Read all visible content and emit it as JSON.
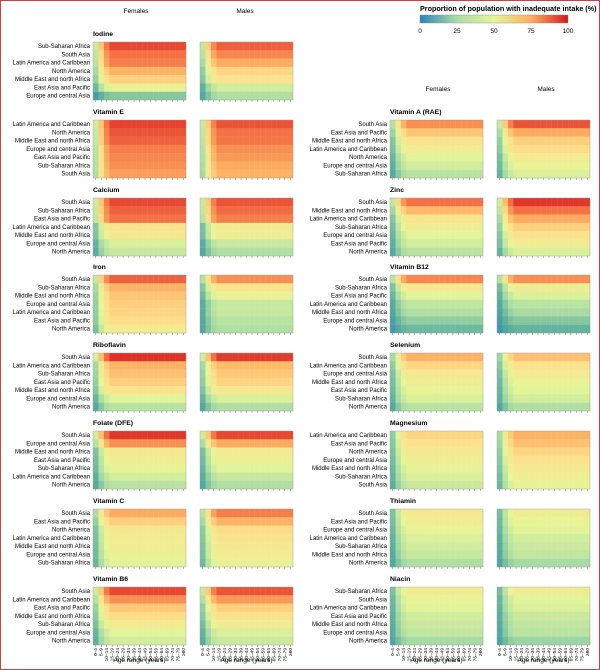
{
  "legend": {
    "title": "Proportion of population with inadequate intake (%)",
    "ticks": [
      "0",
      "25",
      "50",
      "75",
      "100"
    ]
  },
  "sex_labels": [
    "Females",
    "Males"
  ],
  "age_bins": [
    "0–4",
    "5–9",
    "10–14",
    "15–19",
    "20–24",
    "25–29",
    "30–34",
    "35–39",
    "40–44",
    "45–49",
    "50–54",
    "55–59",
    "60–64",
    "65–69",
    "70–74",
    "75–79",
    "≥80"
  ],
  "xlabel": "Age range (years)",
  "colors": {
    "scale": [
      "#2b83ba",
      "#5aae9c",
      "#abdda4",
      "#e6f598",
      "#fee08b",
      "#fdae61",
      "#f46d43",
      "#d7191c"
    ],
    "frame": "#d23f3f"
  },
  "chart_data": [
    {
      "type": "heatmap",
      "title": "Iodine",
      "column": "left",
      "regions": [
        "Sub-Saharan Africa",
        "South Asia",
        "Latin America and Caribbean",
        "North America",
        "Middle East and north Africa",
        "East Asia and Pacific",
        "Europe and central Asia"
      ],
      "series": [
        {
          "name": "Females",
          "base": [
            92,
            85,
            82,
            70,
            62,
            45,
            22
          ]
        },
        {
          "name": "Males",
          "base": [
            88,
            80,
            72,
            60,
            55,
            38,
            30
          ]
        }
      ]
    },
    {
      "type": "heatmap",
      "title": "Vitamin E",
      "column": "left",
      "regions": [
        "Latin America and Caribbean",
        "North America",
        "Middle East and north Africa",
        "Europe and central Asia",
        "East Asia and Pacific",
        "Sub-Saharan Africa",
        "South Asia"
      ],
      "series": [
        {
          "name": "Females",
          "base": [
            93,
            90,
            88,
            82,
            80,
            78,
            75
          ]
        },
        {
          "name": "Males",
          "base": [
            90,
            85,
            84,
            78,
            76,
            72,
            70
          ]
        }
      ]
    },
    {
      "type": "heatmap",
      "title": "Calcium",
      "column": "left",
      "regions": [
        "South Asia",
        "Sub-Saharan Africa",
        "East Asia and Pacific",
        "Latin America and Caribbean",
        "Middle East and north Africa",
        "Europe and central Asia",
        "North America"
      ],
      "series": [
        {
          "name": "Females",
          "base": [
            92,
            88,
            85,
            55,
            52,
            40,
            35
          ]
        },
        {
          "name": "Males",
          "base": [
            90,
            86,
            82,
            50,
            48,
            36,
            30
          ]
        }
      ]
    },
    {
      "type": "heatmap",
      "title": "Iron",
      "column": "left",
      "regions": [
        "South Asia",
        "Sub-Saharan Africa",
        "Middle East and north Africa",
        "Europe and central Asia",
        "Latin America and Caribbean",
        "East Asia and Pacific",
        "North America"
      ],
      "series": [
        {
          "name": "Females",
          "base": [
            88,
            70,
            65,
            62,
            60,
            58,
            50
          ]
        },
        {
          "name": "Males",
          "base": [
            78,
            55,
            45,
            35,
            35,
            32,
            30
          ]
        }
      ]
    },
    {
      "type": "heatmap",
      "title": "Riboflavin",
      "column": "left",
      "regions": [
        "South Asia",
        "Latin America and Caribbean",
        "Sub-Saharan Africa",
        "East Asia and Pacific",
        "Middle East and north Africa",
        "Europe and central Asia",
        "North America"
      ],
      "series": [
        {
          "name": "Females",
          "base": [
            96,
            70,
            66,
            62,
            55,
            42,
            32
          ]
        },
        {
          "name": "Males",
          "base": [
            94,
            68,
            64,
            60,
            52,
            40,
            30
          ]
        }
      ]
    },
    {
      "type": "heatmap",
      "title": "Folate (DFE)",
      "column": "left",
      "regions": [
        "South Asia",
        "Europe and central Asia",
        "Middle East and north Africa",
        "East Asia and Pacific",
        "Sub-Saharan Africa",
        "Latin America and Caribbean",
        "North America"
      ],
      "series": [
        {
          "name": "Females",
          "base": [
            95,
            78,
            52,
            48,
            45,
            38,
            32
          ]
        },
        {
          "name": "Males",
          "base": [
            92,
            72,
            50,
            46,
            42,
            35,
            30
          ]
        }
      ]
    },
    {
      "type": "heatmap",
      "title": "Vitamin C",
      "column": "left",
      "regions": [
        "South Asia",
        "East Asia and Pacific",
        "North America",
        "Latin America and Caribbean",
        "Middle East and north Africa",
        "Europe and central Asia",
        "Sub-Saharan Africa"
      ],
      "series": [
        {
          "name": "Females",
          "base": [
            72,
            62,
            52,
            50,
            48,
            46,
            42
          ]
        },
        {
          "name": "Males",
          "base": [
            82,
            70,
            58,
            55,
            52,
            50,
            46
          ]
        }
      ]
    },
    {
      "type": "heatmap",
      "title": "Vitamin B6",
      "column": "left",
      "regions": [
        "South Asia",
        "Latin America and Caribbean",
        "East Asia and Pacific",
        "Middle East and north Africa",
        "Sub-Saharan Africa",
        "Europe and central Asia",
        "North America"
      ],
      "series": [
        {
          "name": "Females",
          "base": [
            92,
            78,
            64,
            58,
            50,
            42,
            38
          ]
        },
        {
          "name": "Males",
          "base": [
            90,
            76,
            62,
            56,
            48,
            40,
            36
          ]
        }
      ]
    },
    {
      "type": "heatmap",
      "title": "Vitamin A (RAE)",
      "column": "right",
      "regions": [
        "South Asia",
        "East Asia and Pacific",
        "Middle East and north Africa",
        "Latin America and Caribbean",
        "North America",
        "Europe and central Asia",
        "Sub-Saharan Africa"
      ],
      "series": [
        {
          "name": "Females",
          "base": [
            78,
            65,
            55,
            50,
            42,
            38,
            32
          ]
        },
        {
          "name": "Males",
          "base": [
            90,
            72,
            62,
            58,
            50,
            45,
            40
          ]
        }
      ]
    },
    {
      "type": "heatmap",
      "title": "Zinc",
      "column": "right",
      "regions": [
        "South Asia",
        "Middle East and north Africa",
        "Latin America and Caribbean",
        "Sub-Saharan Africa",
        "Europe and central Asia",
        "East Asia and Pacific",
        "North America"
      ],
      "series": [
        {
          "name": "Females",
          "base": [
            85,
            68,
            55,
            48,
            42,
            38,
            32
          ]
        },
        {
          "name": "Males",
          "base": [
            95,
            85,
            72,
            62,
            55,
            50,
            40
          ]
        }
      ]
    },
    {
      "type": "heatmap",
      "title": "Vitamin B12",
      "column": "right",
      "regions": [
        "South Asia",
        "Sub-Saharan Africa",
        "East Asia and Pacific",
        "Latin America and Caribbean",
        "Middle East and north Africa",
        "Europe and central Asia",
        "North America"
      ],
      "series": [
        {
          "name": "Females",
          "base": [
            80,
            52,
            42,
            34,
            30,
            24,
            18
          ]
        },
        {
          "name": "Males",
          "base": [
            78,
            48,
            40,
            32,
            28,
            22,
            16
          ]
        }
      ]
    },
    {
      "type": "heatmap",
      "title": "Selenium",
      "column": "right",
      "regions": [
        "South Asia",
        "Latin America and Caribbean",
        "Europe and central Asia",
        "Middle East and north Africa",
        "East Asia and Pacific",
        "Sub-Saharan Africa",
        "North America"
      ],
      "series": [
        {
          "name": "Females",
          "base": [
            70,
            60,
            52,
            48,
            44,
            40,
            32
          ]
        },
        {
          "name": "Males",
          "base": [
            66,
            56,
            50,
            45,
            42,
            38,
            30
          ]
        }
      ]
    },
    {
      "type": "heatmap",
      "title": "Magnesium",
      "column": "right",
      "regions": [
        "Latin America and Caribbean",
        "East Asia and Pacific",
        "North America",
        "Europe and central Asia",
        "Middle East and north Africa",
        "Sub-Saharan Africa",
        "South Asia"
      ],
      "series": [
        {
          "name": "Females",
          "base": [
            60,
            56,
            52,
            48,
            44,
            40,
            36
          ]
        },
        {
          "name": "Males",
          "base": [
            70,
            66,
            60,
            56,
            52,
            48,
            44
          ]
        }
      ]
    },
    {
      "type": "heatmap",
      "title": "Thiamin",
      "column": "right",
      "regions": [
        "South Asia",
        "East Asia and Pacific",
        "Europe and central Asia",
        "Latin America and Caribbean",
        "Sub-Saharan Africa",
        "Middle East and north Africa",
        "North America"
      ],
      "series": [
        {
          "name": "Females",
          "base": [
            52,
            48,
            44,
            40,
            38,
            35,
            30
          ]
        },
        {
          "name": "Males",
          "base": [
            48,
            45,
            42,
            38,
            36,
            34,
            28
          ]
        }
      ]
    },
    {
      "type": "heatmap",
      "title": "Niacin",
      "column": "right",
      "regions": [
        "Sub-Saharan Africa",
        "South Asia",
        "Latin America and Caribbean",
        "East Asia and Pacific",
        "Middle East and north Africa",
        "Europe and central Asia",
        "North America"
      ],
      "series": [
        {
          "name": "Females",
          "base": [
            50,
            44,
            42,
            38,
            36,
            34,
            28
          ]
        },
        {
          "name": "Males",
          "base": [
            48,
            42,
            40,
            36,
            34,
            32,
            26
          ]
        }
      ]
    }
  ]
}
